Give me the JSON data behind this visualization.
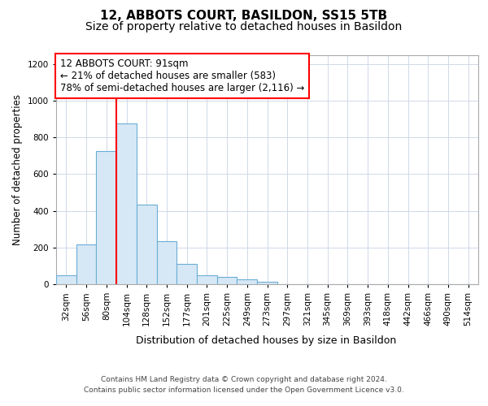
{
  "title": "12, ABBOTS COURT, BASILDON, SS15 5TB",
  "subtitle": "Size of property relative to detached houses in Basildon",
  "xlabel": "Distribution of detached houses by size in Basildon",
  "ylabel": "Number of detached properties",
  "footer1": "Contains HM Land Registry data © Crown copyright and database right 2024.",
  "footer2": "Contains public sector information licensed under the Open Government Licence v3.0.",
  "annotation_title": "12 ABBOTS COURT: 91sqm",
  "annotation_line2": "← 21% of detached houses are smaller (583)",
  "annotation_line3": "78% of semi-detached houses are larger (2,116) →",
  "bar_categories": [
    "32sqm",
    "56sqm",
    "80sqm",
    "104sqm",
    "128sqm",
    "152sqm",
    "177sqm",
    "201sqm",
    "225sqm",
    "249sqm",
    "273sqm",
    "297sqm",
    "321sqm",
    "345sqm",
    "369sqm",
    "393sqm",
    "418sqm",
    "442sqm",
    "466sqm",
    "490sqm",
    "514sqm"
  ],
  "bar_values": [
    50,
    215,
    725,
    875,
    435,
    235,
    110,
    50,
    40,
    25,
    15,
    0,
    0,
    0,
    0,
    0,
    0,
    0,
    0,
    0,
    0
  ],
  "bar_width": 1.0,
  "bar_face_color": "#d6e8f5",
  "bar_edge_color": "#6baed6",
  "vline_x": 2.5,
  "vline_color": "red",
  "annotation_box_color": "red",
  "annotation_box_facecolor": "white",
  "ylim": [
    0,
    1250
  ],
  "yticks": [
    0,
    200,
    400,
    600,
    800,
    1000,
    1200
  ],
  "grid_color": "#d0d8e8",
  "background_color": "#ffffff",
  "axes_background": "#ffffff",
  "title_fontsize": 11,
  "subtitle_fontsize": 10,
  "xlabel_fontsize": 9,
  "ylabel_fontsize": 8.5,
  "tick_fontsize": 7.5,
  "annotation_fontsize": 8.5,
  "footer_fontsize": 6.5
}
